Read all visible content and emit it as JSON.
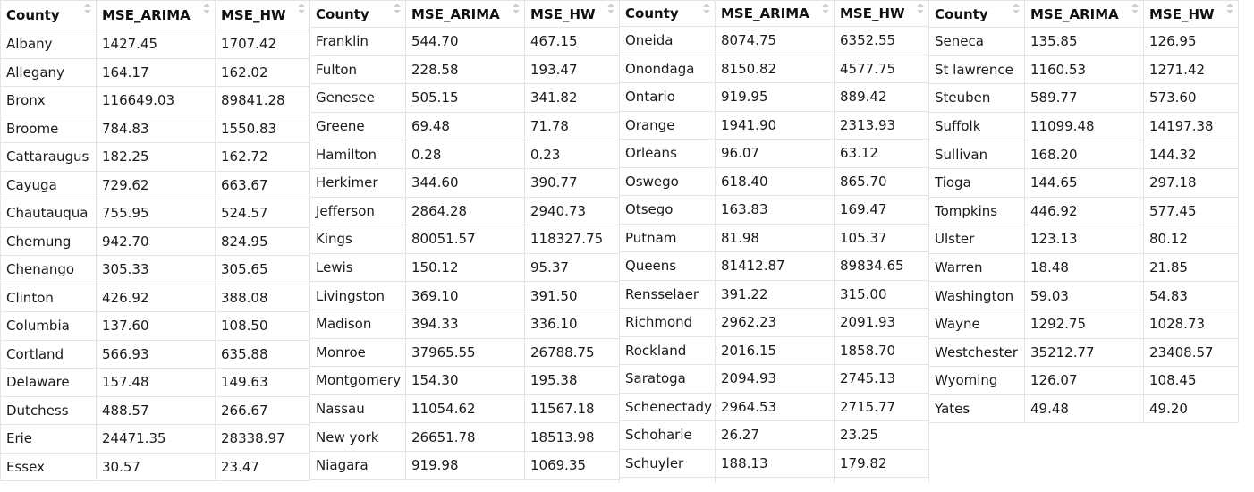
{
  "tables": [
    {
      "headers": [
        "County",
        "MSE_ARIMA",
        "MSE_HW"
      ],
      "rows": [
        [
          "Albany",
          "1427.45",
          "1707.42"
        ],
        [
          "Allegany",
          "164.17",
          "162.02"
        ],
        [
          "Bronx",
          "116649.03",
          "89841.28"
        ],
        [
          "Broome",
          "784.83",
          "1550.83"
        ],
        [
          "Cattaraugus",
          "182.25",
          "162.72"
        ],
        [
          "Cayuga",
          "729.62",
          "663.67"
        ],
        [
          "Chautauqua",
          "755.95",
          "524.57"
        ],
        [
          "Chemung",
          "942.70",
          "824.95"
        ],
        [
          "Chenango",
          "305.33",
          "305.65"
        ],
        [
          "Clinton",
          "426.92",
          "388.08"
        ],
        [
          "Columbia",
          "137.60",
          "108.50"
        ],
        [
          "Cortland",
          "566.93",
          "635.88"
        ],
        [
          "Delaware",
          "157.48",
          "149.63"
        ],
        [
          "Dutchess",
          "488.57",
          "266.67"
        ],
        [
          "Erie",
          "24471.35",
          "28338.97"
        ],
        [
          "Essex",
          "30.57",
          "23.47"
        ]
      ]
    },
    {
      "headers": [
        "County",
        "MSE_ARIMA",
        "MSE_HW"
      ],
      "rows": [
        [
          "Franklin",
          "544.70",
          "467.15"
        ],
        [
          "Fulton",
          "228.58",
          "193.47"
        ],
        [
          "Genesee",
          "505.15",
          "341.82"
        ],
        [
          "Greene",
          "69.48",
          "71.78"
        ],
        [
          "Hamilton",
          "0.28",
          "0.23"
        ],
        [
          "Herkimer",
          "344.60",
          "390.77"
        ],
        [
          "Jefferson",
          "2864.28",
          "2940.73"
        ],
        [
          "Kings",
          "80051.57",
          "118327.75"
        ],
        [
          "Lewis",
          "150.12",
          "95.37"
        ],
        [
          "Livingston",
          "369.10",
          "391.50"
        ],
        [
          "Madison",
          "394.33",
          "336.10"
        ],
        [
          "Monroe",
          "37965.55",
          "26788.75"
        ],
        [
          "Montgomery",
          "154.30",
          "195.38"
        ],
        [
          "Nassau",
          "11054.62",
          "11567.18"
        ],
        [
          "New york",
          "26651.78",
          "18513.98"
        ],
        [
          "Niagara",
          "919.98",
          "1069.35"
        ]
      ]
    },
    {
      "headers": [
        "County",
        "MSE_ARIMA",
        "MSE_HW"
      ],
      "rows": [
        [
          "Oneida",
          "8074.75",
          "6352.55"
        ],
        [
          "Onondaga",
          "8150.82",
          "4577.75"
        ],
        [
          "Ontario",
          "919.95",
          "889.42"
        ],
        [
          "Orange",
          "1941.90",
          "2313.93"
        ],
        [
          "Orleans",
          "96.07",
          "63.12"
        ],
        [
          "Oswego",
          "618.40",
          "865.70"
        ],
        [
          "Otsego",
          "163.83",
          "169.47"
        ],
        [
          "Putnam",
          "81.98",
          "105.37"
        ],
        [
          "Queens",
          "81412.87",
          "89834.65"
        ],
        [
          "Rensselaer",
          "391.22",
          "315.00"
        ],
        [
          "Richmond",
          "2962.23",
          "2091.93"
        ],
        [
          "Rockland",
          "2016.15",
          "1858.70"
        ],
        [
          "Saratoga",
          "2094.93",
          "2745.13"
        ],
        [
          "Schenectady",
          "2964.53",
          "2715.77"
        ],
        [
          "Schoharie",
          "26.27",
          "23.25"
        ],
        [
          "Schuyler",
          "188.13",
          "179.82"
        ]
      ]
    },
    {
      "headers": [
        "County",
        "MSE_ARIMA",
        "MSE_HW"
      ],
      "rows": [
        [
          "Seneca",
          "135.85",
          "126.95"
        ],
        [
          "St lawrence",
          "1160.53",
          "1271.42"
        ],
        [
          "Steuben",
          "589.77",
          "573.60"
        ],
        [
          "Suffolk",
          "11099.48",
          "14197.38"
        ],
        [
          "Sullivan",
          "168.20",
          "144.32"
        ],
        [
          "Tioga",
          "144.65",
          "297.18"
        ],
        [
          "Tompkins",
          "446.92",
          "577.45"
        ],
        [
          "Ulster",
          "123.13",
          "80.12"
        ],
        [
          "Warren",
          "18.48",
          "21.85"
        ],
        [
          "Washington",
          "59.03",
          "54.83"
        ],
        [
          "Wayne",
          "1292.75",
          "1028.73"
        ],
        [
          "Westchester",
          "35212.77",
          "23408.57"
        ],
        [
          "Wyoming",
          "126.07",
          "108.45"
        ],
        [
          "Yates",
          "49.48",
          "49.20"
        ]
      ]
    }
  ]
}
